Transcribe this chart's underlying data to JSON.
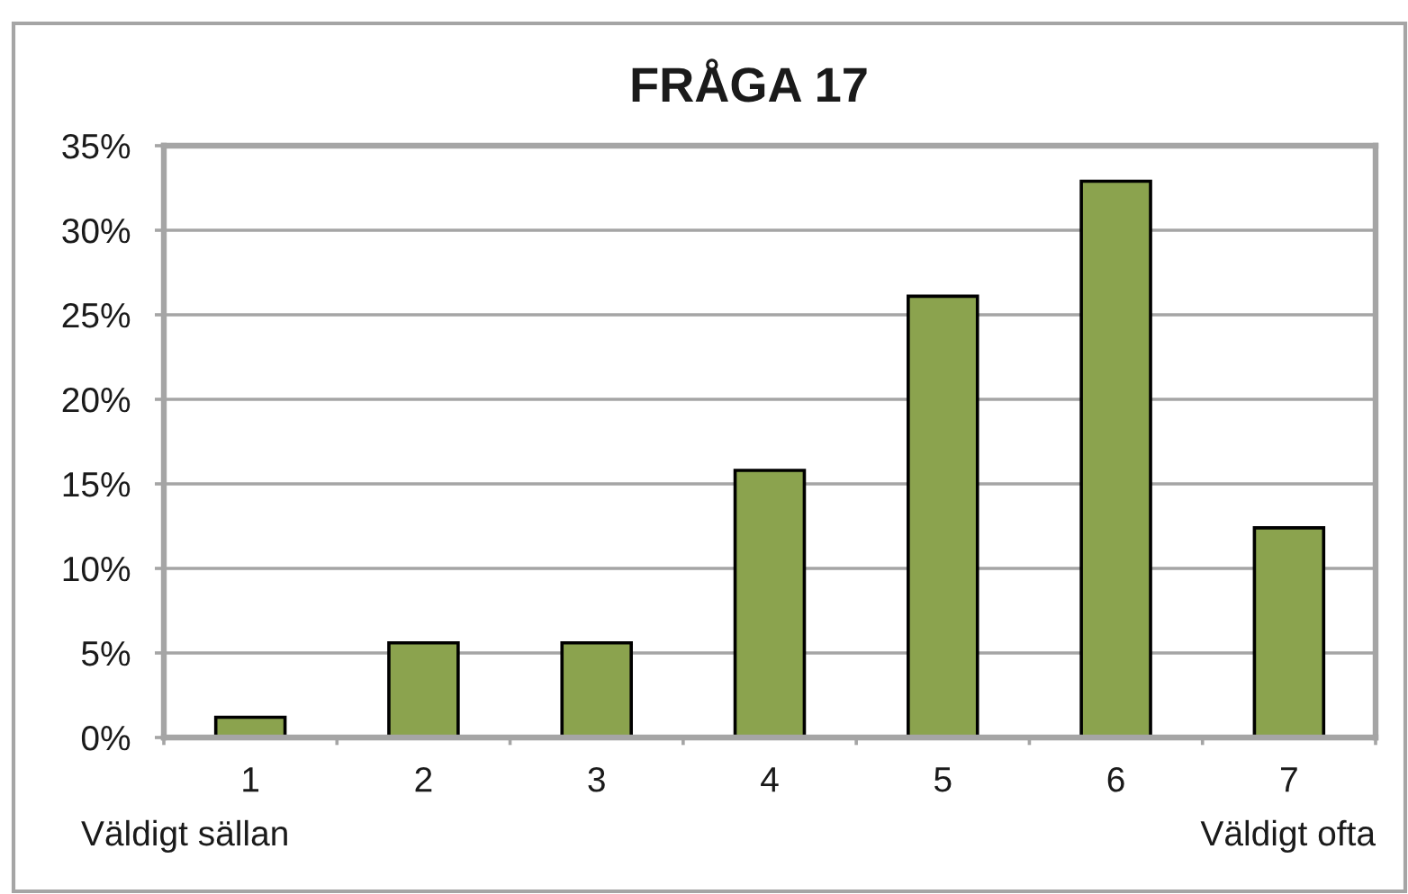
{
  "chart_data": {
    "type": "bar",
    "title": "FRÅGA 17",
    "categories": [
      "1",
      "2",
      "3",
      "4",
      "5",
      "6",
      "7"
    ],
    "values": [
      1.2,
      5.6,
      5.6,
      15.8,
      26.1,
      32.9,
      12.4
    ],
    "color": "#8ba34e",
    "ylim": [
      0,
      35
    ],
    "yticks": [
      {
        "value": 0,
        "label": "0%"
      },
      {
        "value": 5,
        "label": "5%"
      },
      {
        "value": 10,
        "label": "10%"
      },
      {
        "value": 15,
        "label": "15%"
      },
      {
        "value": 20,
        "label": "20%"
      },
      {
        "value": 25,
        "label": "25%"
      },
      {
        "value": 30,
        "label": "30%"
      },
      {
        "value": 35,
        "label": "35%"
      }
    ],
    "grid": "y",
    "annotations": [
      "Väldigt sällan",
      "Väldigt ofta"
    ]
  }
}
